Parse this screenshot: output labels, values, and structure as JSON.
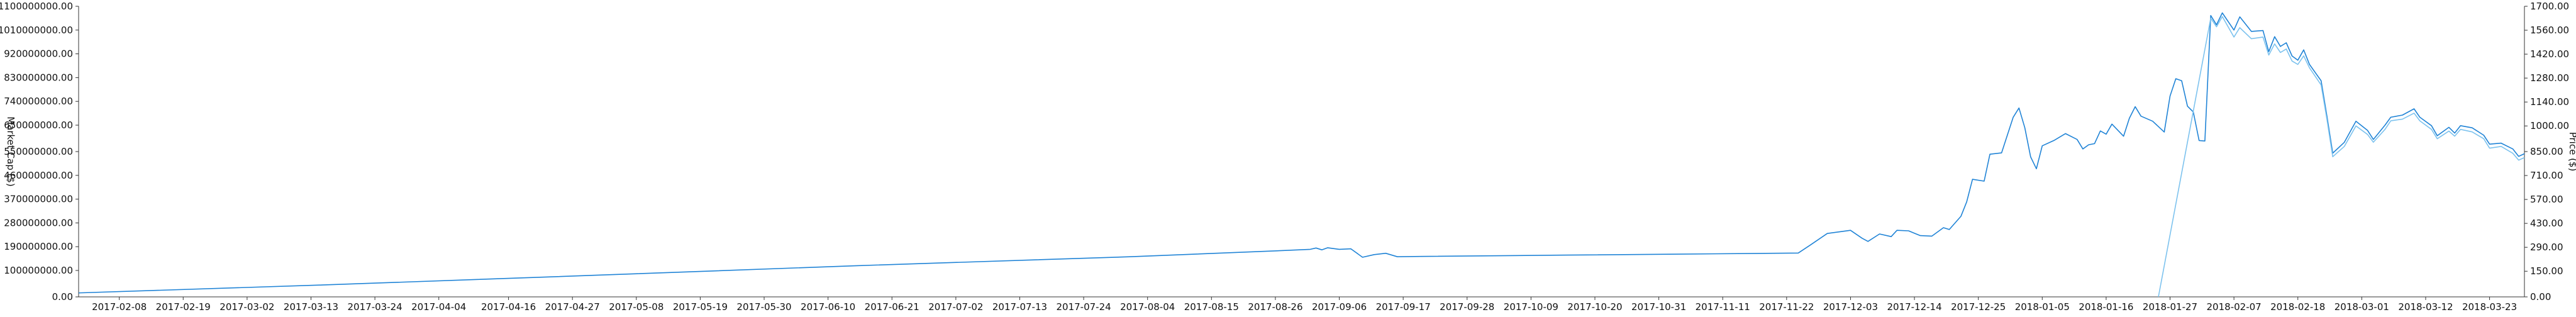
{
  "chart_data": {
    "type": "line",
    "xlabel": "",
    "ylabel_left": "Market Cap ($)",
    "ylabel_right": "Price ($)",
    "x_range": [
      "2017-02-01",
      "2018-03-29"
    ],
    "x_ticks": [
      "2017-02-08",
      "2017-02-19",
      "2017-03-02",
      "2017-03-13",
      "2017-03-24",
      "2017-04-04",
      "2017-04-16",
      "2017-04-27",
      "2017-05-08",
      "2017-05-19",
      "2017-05-30",
      "2017-06-10",
      "2017-06-21",
      "2017-07-02",
      "2017-07-13",
      "2017-07-24",
      "2017-08-04",
      "2017-08-15",
      "2017-08-26",
      "2017-09-06",
      "2017-09-17",
      "2017-09-28",
      "2017-10-09",
      "2017-10-20",
      "2017-10-31",
      "2017-11-11",
      "2017-11-22",
      "2017-12-03",
      "2017-12-14",
      "2017-12-25",
      "2018-01-05",
      "2018-01-16",
      "2018-01-27",
      "2018-02-07",
      "2018-02-18",
      "2018-03-01",
      "2018-03-12",
      "2018-03-23"
    ],
    "y_left_ticks": [
      "0.00",
      "100000000.00",
      "190000000.00",
      "280000000.00",
      "370000000.00",
      "460000000.00",
      "550000000.00",
      "650000000.00",
      "740000000.00",
      "830000000.00",
      "920000000.00",
      "1010000000.00",
      "1100000000.00"
    ],
    "y_left_range": [
      0,
      1100000000
    ],
    "y_right_ticks": [
      "0.00",
      "150.00",
      "290.00",
      "430.00",
      "570.00",
      "710.00",
      "850.00",
      "1000.00",
      "1140.00",
      "1280.00",
      "1420.00",
      "1560.00",
      "1700.00"
    ],
    "y_right_range": [
      0,
      1700
    ],
    "grid": false,
    "colors": {
      "market_cap": "#1f83d6",
      "price": "#7cc2ee",
      "axis": "#333333"
    },
    "series": [
      {
        "name": "Market Cap ($)",
        "axis": "left",
        "points": [
          [
            "2017-02-01",
            15000000
          ],
          [
            "2017-03-15",
            45000000
          ],
          [
            "2017-05-01",
            82000000
          ],
          [
            "2017-06-15",
            118000000
          ],
          [
            "2017-08-01",
            152000000
          ],
          [
            "2017-08-28",
            176000000
          ],
          [
            "2017-09-01",
            180000000
          ],
          [
            "2017-09-02",
            185000000
          ],
          [
            "2017-09-03",
            178000000
          ],
          [
            "2017-09-04",
            186000000
          ],
          [
            "2017-09-06",
            180000000
          ],
          [
            "2017-09-08",
            182000000
          ],
          [
            "2017-09-10",
            150000000
          ],
          [
            "2017-09-12",
            160000000
          ],
          [
            "2017-09-14",
            165000000
          ],
          [
            "2017-09-16",
            152000000
          ],
          [
            "2017-09-20",
            153000000
          ],
          [
            "2017-10-15",
            158000000
          ],
          [
            "2017-11-10",
            163000000
          ],
          [
            "2017-11-24",
            166000000
          ],
          [
            "2017-11-26",
            195000000
          ],
          [
            "2017-11-27",
            210000000
          ],
          [
            "2017-11-29",
            240000000
          ],
          [
            "2017-12-01",
            246000000
          ],
          [
            "2017-12-03",
            252000000
          ],
          [
            "2017-12-05",
            222000000
          ],
          [
            "2017-12-06",
            210000000
          ],
          [
            "2017-12-08",
            238000000
          ],
          [
            "2017-12-10",
            228000000
          ],
          [
            "2017-12-11",
            252000000
          ],
          [
            "2017-12-13",
            250000000
          ],
          [
            "2017-12-15",
            232000000
          ],
          [
            "2017-12-17",
            230000000
          ],
          [
            "2017-12-19",
            262000000
          ],
          [
            "2017-12-20",
            255000000
          ],
          [
            "2017-12-22",
            305000000
          ],
          [
            "2017-12-23",
            360000000
          ],
          [
            "2017-12-24",
            445000000
          ],
          [
            "2017-12-26",
            438000000
          ],
          [
            "2017-12-27",
            540000000
          ],
          [
            "2017-12-29",
            545000000
          ],
          [
            "2017-12-31",
            680000000
          ],
          [
            "2018-01-01",
            715000000
          ],
          [
            "2018-01-02",
            640000000
          ],
          [
            "2018-01-03",
            530000000
          ],
          [
            "2018-01-04",
            485000000
          ],
          [
            "2018-01-05",
            572000000
          ],
          [
            "2018-01-07",
            592000000
          ],
          [
            "2018-01-09",
            618000000
          ],
          [
            "2018-01-11",
            596000000
          ],
          [
            "2018-01-12",
            560000000
          ],
          [
            "2018-01-13",
            576000000
          ],
          [
            "2018-01-14",
            580000000
          ],
          [
            "2018-01-15",
            628000000
          ],
          [
            "2018-01-16",
            616000000
          ],
          [
            "2018-01-17",
            654000000
          ],
          [
            "2018-01-19",
            608000000
          ],
          [
            "2018-01-20",
            676000000
          ],
          [
            "2018-01-21",
            720000000
          ],
          [
            "2018-01-22",
            684000000
          ],
          [
            "2018-01-24",
            665000000
          ],
          [
            "2018-01-26",
            624000000
          ],
          [
            "2018-01-27",
            760000000
          ],
          [
            "2018-01-28",
            826000000
          ],
          [
            "2018-01-29",
            818000000
          ],
          [
            "2018-01-30",
            722000000
          ],
          [
            "2018-01-31",
            700000000
          ],
          [
            "2018-02-01",
            592000000
          ],
          [
            "2018-02-02",
            590000000
          ],
          [
            "2018-02-03",
            1065000000
          ],
          [
            "2018-02-04",
            1030000000
          ],
          [
            "2018-02-05",
            1075000000
          ],
          [
            "2018-02-07",
            1010000000
          ],
          [
            "2018-02-08",
            1060000000
          ],
          [
            "2018-02-10",
            1005000000
          ],
          [
            "2018-02-12",
            1008000000
          ],
          [
            "2018-02-13",
            928000000
          ],
          [
            "2018-02-14",
            985000000
          ],
          [
            "2018-02-15",
            948000000
          ],
          [
            "2018-02-16",
            962000000
          ],
          [
            "2018-02-17",
            912000000
          ],
          [
            "2018-02-18",
            896000000
          ],
          [
            "2018-02-19",
            935000000
          ],
          [
            "2018-02-20",
            880000000
          ],
          [
            "2018-02-22",
            818000000
          ],
          [
            "2018-02-23",
            685000000
          ],
          [
            "2018-02-24",
            544000000
          ],
          [
            "2018-02-26",
            585000000
          ],
          [
            "2018-02-28",
            665000000
          ],
          [
            "2018-03-02",
            630000000
          ],
          [
            "2018-03-03",
            596000000
          ],
          [
            "2018-03-05",
            650000000
          ],
          [
            "2018-03-06",
            680000000
          ],
          [
            "2018-03-08",
            688000000
          ],
          [
            "2018-03-10",
            712000000
          ],
          [
            "2018-03-11",
            680000000
          ],
          [
            "2018-03-13",
            648000000
          ],
          [
            "2018-03-14",
            610000000
          ],
          [
            "2018-03-16",
            642000000
          ],
          [
            "2018-03-17",
            620000000
          ],
          [
            "2018-03-18",
            648000000
          ],
          [
            "2018-03-20",
            640000000
          ],
          [
            "2018-03-22",
            612000000
          ],
          [
            "2018-03-23",
            578000000
          ],
          [
            "2018-03-25",
            582000000
          ],
          [
            "2018-03-27",
            560000000
          ],
          [
            "2018-03-28",
            532000000
          ],
          [
            "2018-03-29",
            542000000
          ]
        ]
      },
      {
        "name": "Price ($)",
        "axis": "right",
        "points": [
          [
            "2018-01-25",
            0
          ],
          [
            "2018-02-03",
            1630
          ],
          [
            "2018-02-04",
            1580
          ],
          [
            "2018-02-05",
            1640
          ],
          [
            "2018-02-07",
            1520
          ],
          [
            "2018-02-08",
            1575
          ],
          [
            "2018-02-10",
            1510
          ],
          [
            "2018-02-12",
            1520
          ],
          [
            "2018-02-13",
            1415
          ],
          [
            "2018-02-14",
            1480
          ],
          [
            "2018-02-15",
            1430
          ],
          [
            "2018-02-16",
            1450
          ],
          [
            "2018-02-17",
            1380
          ],
          [
            "2018-02-18",
            1360
          ],
          [
            "2018-02-19",
            1410
          ],
          [
            "2018-02-20",
            1340
          ],
          [
            "2018-02-22",
            1240
          ],
          [
            "2018-02-23",
            1040
          ],
          [
            "2018-02-24",
            820
          ],
          [
            "2018-02-26",
            880
          ],
          [
            "2018-02-28",
            1000
          ],
          [
            "2018-03-02",
            950
          ],
          [
            "2018-03-03",
            905
          ],
          [
            "2018-03-05",
            980
          ],
          [
            "2018-03-06",
            1030
          ],
          [
            "2018-03-08",
            1040
          ],
          [
            "2018-03-10",
            1075
          ],
          [
            "2018-03-11",
            1030
          ],
          [
            "2018-03-13",
            980
          ],
          [
            "2018-03-14",
            925
          ],
          [
            "2018-03-16",
            970
          ],
          [
            "2018-03-17",
            940
          ],
          [
            "2018-03-18",
            980
          ],
          [
            "2018-03-20",
            965
          ],
          [
            "2018-03-22",
            925
          ],
          [
            "2018-03-23",
            870
          ],
          [
            "2018-03-25",
            880
          ],
          [
            "2018-03-27",
            840
          ],
          [
            "2018-03-28",
            800
          ],
          [
            "2018-03-29",
            815
          ]
        ]
      }
    ]
  }
}
